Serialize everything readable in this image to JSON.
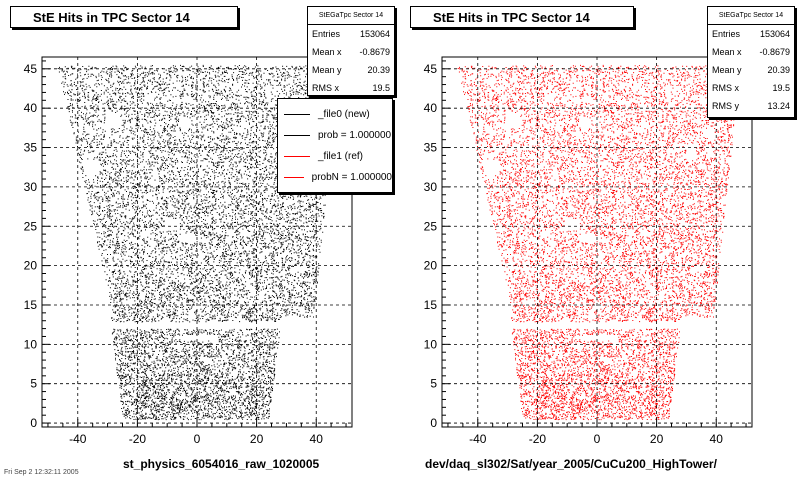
{
  "footer_text": "Fri Sep  2 12:32:11 2005",
  "charts": [
    {
      "title": "StE Hits in TPC Sector 14",
      "color": "#000000",
      "stats": {
        "name": "StEGaTpc Sector 14",
        "rows": [
          {
            "label": "Entries",
            "value": "153064"
          },
          {
            "label": "Mean x",
            "value": "-0.8679"
          },
          {
            "label": "Mean y",
            "value": "20.39"
          },
          {
            "label": "RMS x",
            "value": "19.5"
          }
        ]
      },
      "legend": [
        {
          "label": "_file0 (new)",
          "color": "#000000"
        },
        {
          "label": "prob = 1.000000",
          "color": "#000000"
        },
        {
          "label": "_file1 (ref)",
          "color": "#ff0000"
        },
        {
          "label": "probN = 1.000000",
          "color": "#ff0000"
        }
      ],
      "xcaption": "st_physics_6054016_raw_1020005"
    },
    {
      "title": "StE Hits in TPC Sector 14",
      "color": "#ff0000",
      "stats": {
        "name": "StEGaTpc Sector 14",
        "rows": [
          {
            "label": "Entries",
            "value": "153064"
          },
          {
            "label": "Mean x",
            "value": "-0.8679"
          },
          {
            "label": "Mean y",
            "value": "20.39"
          },
          {
            "label": "RMS x",
            "value": "19.5"
          },
          {
            "label": "RMS y",
            "value": "13.24"
          }
        ]
      },
      "xcaption": "dev/daq_sl302/Sat/year_2005/CuCu200_HighTower/"
    }
  ],
  "chart_data": [
    {
      "type": "scatter",
      "title": "StE Hits in TPC Sector 14",
      "xlim": [
        -52,
        52
      ],
      "ylim": [
        -0.5,
        46.5
      ],
      "xticks": [
        -40,
        -20,
        0,
        20,
        40
      ],
      "yticks": [
        0,
        5,
        10,
        15,
        20,
        25,
        30,
        35,
        40,
        45
      ],
      "grid": true,
      "entries": 153064,
      "mean_x": -0.8679,
      "mean_y": 20.39,
      "rms_x": 19.5,
      "series": [
        {
          "name": "_file0 (new)",
          "color": "#000000"
        }
      ],
      "footprint": {
        "outer_rows": [
          {
            "y": 0.5,
            "x": [
              -25,
              24
            ]
          },
          {
            "y": 12.5,
            "x": [
              -29,
              28
            ]
          },
          {
            "y": 13.5,
            "x": [
              -28,
              39
            ]
          },
          {
            "y": 45.5,
            "x": [
              -47,
              48
            ]
          }
        ],
        "row_gap": [
          12.0,
          12.9
        ],
        "holes": [
          {
            "x": [
              -31,
              -26
            ],
            "y": [
              37.5,
              39.5
            ]
          },
          {
            "x": [
              -38,
              -33
            ],
            "y": [
              31.5,
              33.5
            ]
          },
          {
            "x": [
              -6,
              -2
            ],
            "y": [
              37.8,
              38.8
            ]
          },
          {
            "x": [
              -18,
              -15
            ],
            "y": [
              40.8,
              41.8
            ]
          },
          {
            "x": [
              -18,
              -16
            ],
            "y": [
              33.6,
              34.4
            ]
          },
          {
            "x": [
              -11,
              -6
            ],
            "y": [
              24.5,
              26
            ]
          },
          {
            "x": [
              -6,
              -1
            ],
            "y": [
              23,
              24
            ]
          },
          {
            "x": [
              -1,
              2
            ],
            "y": [
              20.6,
              21.4
            ]
          },
          {
            "x": [
              -1,
              1
            ],
            "y": [
              14.6,
              15.4
            ]
          },
          {
            "x": [
              -5,
              6
            ],
            "y": [
              10.5,
              11.3
            ]
          },
          {
            "x": [
              -8,
              -5
            ],
            "y": [
              9.4,
              10.2
            ]
          },
          {
            "x": [
              2,
              5
            ],
            "y": [
              7.6,
              8.4
            ]
          },
          {
            "x": [
              9,
              10
            ],
            "y": [
              8,
              8.6
            ]
          },
          {
            "x": [
              11,
              13
            ],
            "y": [
              3.6,
              4.4
            ]
          }
        ]
      }
    },
    {
      "type": "scatter",
      "title": "StE Hits in TPC Sector 14",
      "xlim": [
        -52,
        52
      ],
      "ylim": [
        -0.5,
        46.5
      ],
      "xticks": [
        -40,
        -20,
        0,
        20,
        40
      ],
      "yticks": [
        0,
        5,
        10,
        15,
        20,
        25,
        30,
        35,
        40,
        45
      ],
      "grid": true,
      "entries": 153064,
      "mean_x": -0.8679,
      "mean_y": 20.39,
      "rms_x": 19.5,
      "rms_y": 13.24,
      "series": [
        {
          "name": "_file1 (ref)",
          "color": "#ff0000"
        }
      ],
      "footprint": {
        "outer_rows": [
          {
            "y": 0.5,
            "x": [
              -25,
              24
            ]
          },
          {
            "y": 12.5,
            "x": [
              -29,
              28
            ]
          },
          {
            "y": 13.5,
            "x": [
              -28,
              39
            ]
          },
          {
            "y": 45.5,
            "x": [
              -47,
              48
            ]
          }
        ],
        "row_gap": [
          12.0,
          12.9
        ],
        "holes": [
          {
            "x": [
              -31,
              -26
            ],
            "y": [
              37.5,
              39.5
            ]
          },
          {
            "x": [
              -38,
              -33
            ],
            "y": [
              31.5,
              33.5
            ]
          },
          {
            "x": [
              -6,
              -2
            ],
            "y": [
              37.8,
              38.8
            ]
          },
          {
            "x": [
              -18,
              -15
            ],
            "y": [
              40.8,
              41.8
            ]
          },
          {
            "x": [
              -18,
              -16
            ],
            "y": [
              33.6,
              34.4
            ]
          },
          {
            "x": [
              30,
              33
            ],
            "y": [
              33.5,
              35.5
            ]
          },
          {
            "x": [
              -11,
              -6
            ],
            "y": [
              24.5,
              26
            ]
          },
          {
            "x": [
              -6,
              -1
            ],
            "y": [
              23,
              24
            ]
          },
          {
            "x": [
              -1,
              2
            ],
            "y": [
              20.6,
              21.4
            ]
          },
          {
            "x": [
              -1,
              1
            ],
            "y": [
              14.6,
              15.4
            ]
          },
          {
            "x": [
              -5,
              6
            ],
            "y": [
              10.5,
              11.3
            ]
          },
          {
            "x": [
              -8,
              -5
            ],
            "y": [
              9.4,
              10.2
            ]
          },
          {
            "x": [
              2,
              5
            ],
            "y": [
              7.6,
              8.4
            ]
          },
          {
            "x": [
              9,
              10
            ],
            "y": [
              8,
              8.6
            ]
          },
          {
            "x": [
              11,
              13
            ],
            "y": [
              3.6,
              4.4
            ]
          }
        ]
      }
    }
  ]
}
